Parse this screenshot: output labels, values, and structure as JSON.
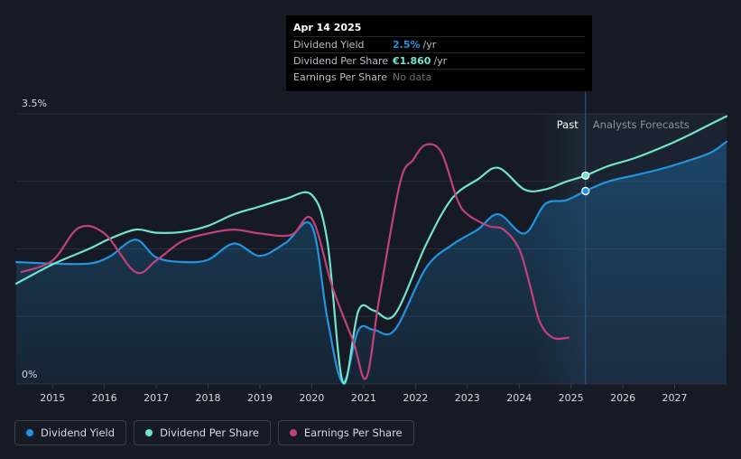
{
  "chart_data": {
    "type": "line",
    "title": "",
    "ylabel": "",
    "xlabel": "",
    "y_tick_labels": [
      "3.5%",
      "0%"
    ],
    "ylim": [
      0,
      3.5
    ],
    "xlim": [
      2014.3,
      2028.0
    ],
    "x_ticks": [
      "2015",
      "2016",
      "2017",
      "2018",
      "2019",
      "2020",
      "2021",
      "2022",
      "2023",
      "2024",
      "2025",
      "2026",
      "2027"
    ],
    "x_tick_values": [
      2015,
      2016,
      2017,
      2018,
      2019,
      2020,
      2021,
      2022,
      2023,
      2024,
      2025,
      2026,
      2027
    ],
    "grid": true,
    "regions": {
      "past_label": "Past",
      "forecast_label": "Analysts Forecasts",
      "forecast_start": 2025.28,
      "past_band_start": 2024.25
    },
    "series": [
      {
        "name": "Dividend Yield",
        "color": "#2394df",
        "filled": true,
        "x": [
          2014.3,
          2015.0,
          2015.7,
          2016.1,
          2016.6,
          2017.0,
          2017.5,
          2018.0,
          2018.5,
          2019.0,
          2019.5,
          2020.0,
          2020.3,
          2020.6,
          2020.9,
          2021.2,
          2021.6,
          2022.2,
          2022.7,
          2023.2,
          2023.6,
          2024.1,
          2024.5,
          2024.9,
          2025.28,
          2025.7,
          2026.2,
          2026.7,
          2027.2,
          2027.7,
          2028.0
        ],
        "y": [
          1.58,
          1.56,
          1.56,
          1.65,
          1.87,
          1.64,
          1.58,
          1.61,
          1.82,
          1.66,
          1.83,
          2.05,
          0.85,
          0.02,
          0.7,
          0.7,
          0.7,
          1.5,
          1.8,
          2.0,
          2.2,
          1.95,
          2.33,
          2.38,
          2.5,
          2.62,
          2.7,
          2.78,
          2.88,
          3.0,
          3.14
        ]
      },
      {
        "name": "Dividend Per Share",
        "color": "#72e3cd",
        "filled": false,
        "x": [
          2014.3,
          2015.0,
          2015.7,
          2016.1,
          2016.6,
          2017.0,
          2017.5,
          2018.0,
          2018.5,
          2019.0,
          2019.5,
          2020.0,
          2020.3,
          2020.6,
          2020.9,
          2021.2,
          2021.6,
          2022.2,
          2022.7,
          2023.2,
          2023.6,
          2024.1,
          2024.5,
          2024.9,
          2025.28,
          2025.7,
          2026.2,
          2026.7,
          2027.2,
          2027.7,
          2028.0
        ],
        "y": [
          1.3,
          1.55,
          1.75,
          1.88,
          2.0,
          1.96,
          1.97,
          2.05,
          2.2,
          2.3,
          2.4,
          2.45,
          1.85,
          0.02,
          0.95,
          0.95,
          0.9,
          1.8,
          2.4,
          2.65,
          2.8,
          2.52,
          2.52,
          2.62,
          2.7,
          2.82,
          2.92,
          3.05,
          3.2,
          3.37,
          3.47
        ]
      },
      {
        "name": "Earnings Per Share",
        "color": "#c0427a",
        "filled": false,
        "x": [
          2014.4,
          2015.0,
          2015.5,
          2016.0,
          2016.6,
          2017.0,
          2017.5,
          2018.0,
          2018.5,
          2019.0,
          2019.6,
          2020.0,
          2020.4,
          2020.8,
          2021.05,
          2021.3,
          2021.7,
          2021.95,
          2022.2,
          2022.5,
          2022.8,
          2023.0,
          2023.4,
          2023.7,
          2024.0,
          2024.2,
          2024.4,
          2024.65,
          2024.95
        ],
        "y": [
          1.45,
          1.6,
          2.02,
          1.95,
          1.45,
          1.6,
          1.85,
          1.95,
          2.0,
          1.95,
          1.93,
          2.14,
          1.25,
          0.55,
          0.08,
          1.1,
          2.6,
          2.9,
          3.1,
          3.0,
          2.4,
          2.2,
          2.05,
          2.0,
          1.75,
          1.3,
          0.8,
          0.6,
          0.6
        ]
      }
    ],
    "marker_x": 2025.28
  },
  "tooltip": {
    "date": "Apr 14 2025",
    "rows": [
      {
        "label": "Dividend Yield",
        "value": "2.5%",
        "unit": "/yr",
        "color": "#2394df"
      },
      {
        "label": "Dividend Per Share",
        "value": "€1.860",
        "unit": "/yr",
        "color": "#72e3cd"
      },
      {
        "label": "Earnings Per Share",
        "value": "No data",
        "unit": "",
        "color": "#6b7078"
      }
    ]
  },
  "legend": [
    {
      "label": "Dividend Yield",
      "color": "#2394df"
    },
    {
      "label": "Dividend Per Share",
      "color": "#72e3cd"
    },
    {
      "label": "Earnings Per Share",
      "color": "#c0427a"
    }
  ]
}
